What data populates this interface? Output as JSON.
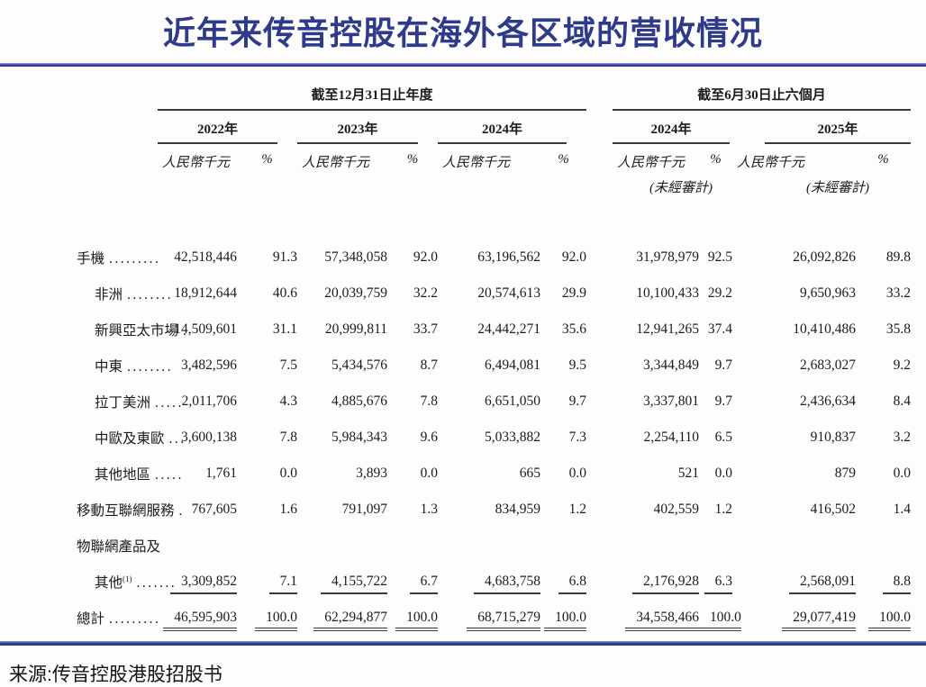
{
  "title": "近年来传音控股在海外各区域的营收情况",
  "source": "来源:传音控股港股招股书",
  "colors": {
    "accent_navy": "#2e3a8a",
    "table_line": "#3a3a3a",
    "text": "#1b1b1b"
  },
  "table": {
    "groups": [
      {
        "label": "截至12月31日止年度",
        "years": [
          "2022年",
          "2023年",
          "2024年"
        ]
      },
      {
        "label": "截至6月30日止六個月",
        "years": [
          "2024年",
          "2025年"
        ]
      }
    ],
    "unit_label": "人民幣千元",
    "percent_label": "%",
    "unaudited_label": "(未經審計)",
    "rows": [
      {
        "label": "手機",
        "dots": ".........",
        "indent": false,
        "bold": true,
        "style": "normal",
        "values": [
          "42,518,446",
          "91.3",
          "57,348,058",
          "92.0",
          "63,196,562",
          "92.0",
          "31,978,979",
          "92.5",
          "26,092,826",
          "89.8"
        ]
      },
      {
        "label": "非洲",
        "dots": "........",
        "indent": true,
        "bold": false,
        "style": "normal",
        "values": [
          "18,912,644",
          "40.6",
          "20,039,759",
          "32.2",
          "20,574,613",
          "29.9",
          "10,100,433",
          "29.2",
          "9,650,963",
          "33.2"
        ]
      },
      {
        "label": "新興亞太市場",
        "dots": ".",
        "indent": true,
        "bold": false,
        "style": "normal",
        "values": [
          "14,509,601",
          "31.1",
          "20,999,811",
          "33.7",
          "24,442,271",
          "35.6",
          "12,941,265",
          "37.4",
          "10,410,486",
          "35.8"
        ]
      },
      {
        "label": "中東",
        "dots": "........",
        "indent": true,
        "bold": false,
        "style": "normal",
        "values": [
          "3,482,596",
          "7.5",
          "5,434,576",
          "8.7",
          "6,494,081",
          "9.5",
          "3,344,849",
          "9.7",
          "2,683,027",
          "9.2"
        ]
      },
      {
        "label": "拉丁美洲",
        "dots": ".....",
        "indent": true,
        "bold": false,
        "style": "normal",
        "values": [
          "2,011,706",
          "4.3",
          "4,885,676",
          "7.8",
          "6,651,050",
          "9.7",
          "3,337,801",
          "9.7",
          "2,436,634",
          "8.4"
        ]
      },
      {
        "label": "中歐及東歐",
        "dots": "...",
        "indent": true,
        "bold": false,
        "style": "normal",
        "values": [
          "3,600,138",
          "7.8",
          "5,984,343",
          "9.6",
          "5,033,882",
          "7.3",
          "2,254,110",
          "6.5",
          "910,837",
          "3.2"
        ]
      },
      {
        "label": "其他地區",
        "dots": ".....",
        "indent": true,
        "bold": false,
        "style": "normal",
        "values": [
          "1,761",
          "0.0",
          "3,893",
          "0.0",
          "665",
          "0.0",
          "521",
          "0.0",
          "879",
          "0.0"
        ]
      },
      {
        "label": "移動互聯網服務",
        "dots": ".",
        "indent": false,
        "bold": true,
        "style": "normal",
        "values": [
          "767,605",
          "1.6",
          "791,097",
          "1.3",
          "834,959",
          "1.2",
          "402,559",
          "1.2",
          "416,502",
          "1.4"
        ]
      },
      {
        "label": "物聯網產品及",
        "dots": "",
        "indent": false,
        "bold": true,
        "style": "label-only",
        "values": []
      },
      {
        "label": "其他",
        "sup": "(1)",
        "dots": ".......",
        "indent": true,
        "bold": true,
        "style": "subtotal",
        "values": [
          "3,309,852",
          "7.1",
          "4,155,722",
          "6.7",
          "4,683,758",
          "6.8",
          "2,176,928",
          "6.3",
          "2,568,091",
          "8.8"
        ]
      },
      {
        "label": "總計",
        "dots": ".........",
        "indent": false,
        "bold": true,
        "style": "total",
        "values": [
          "46,595,903",
          "100.0",
          "62,294,877",
          "100.0",
          "68,715,279",
          "100.0",
          "34,558,466",
          "100.0",
          "29,077,419",
          "100.0"
        ]
      }
    ]
  }
}
